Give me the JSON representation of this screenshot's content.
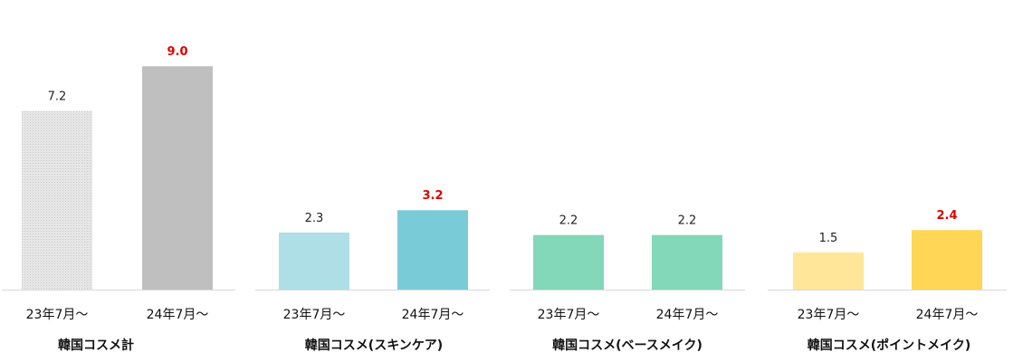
{
  "chart_data": [
    {
      "type": "bar",
      "title": "韓国コスメ計",
      "categories": [
        "23年7月～",
        "24年7月～"
      ],
      "values": [
        7.2,
        9.0
      ],
      "value_labels": [
        "7.2",
        "9.0"
      ],
      "highlight": [
        false,
        true
      ],
      "colors": [
        "#d9d9d9",
        "#bfbfbf"
      ],
      "ylim": [
        0,
        9.7
      ]
    },
    {
      "type": "bar",
      "title": "韓国コスメ(スキンケア)",
      "categories": [
        "23年7月～",
        "24年7月～"
      ],
      "values": [
        2.3,
        3.2
      ],
      "value_labels": [
        "2.3",
        "3.2"
      ],
      "highlight": [
        false,
        true
      ],
      "colors": [
        "#aedfe6",
        "#7acbd8"
      ],
      "ylim": [
        0,
        9.7
      ]
    },
    {
      "type": "bar",
      "title": "韓国コスメ(ベースメイク)",
      "categories": [
        "23年7月～",
        "24年7月～"
      ],
      "values": [
        2.2,
        2.2
      ],
      "value_labels": [
        "2.2",
        "2.2"
      ],
      "highlight": [
        false,
        false
      ],
      "colors": [
        "#82d8b8",
        "#82d8b8"
      ],
      "ylim": [
        0,
        9.7
      ]
    },
    {
      "type": "bar",
      "title": "韓国コスメ(ポイントメイク)",
      "categories": [
        "23年7月～",
        "24年7月～"
      ],
      "values": [
        1.5,
        2.4
      ],
      "value_labels": [
        "1.5",
        "2.4"
      ],
      "highlight": [
        false,
        true
      ],
      "colors": [
        "#ffe699",
        "#ffd655"
      ],
      "ylim": [
        0,
        9.7
      ]
    }
  ]
}
